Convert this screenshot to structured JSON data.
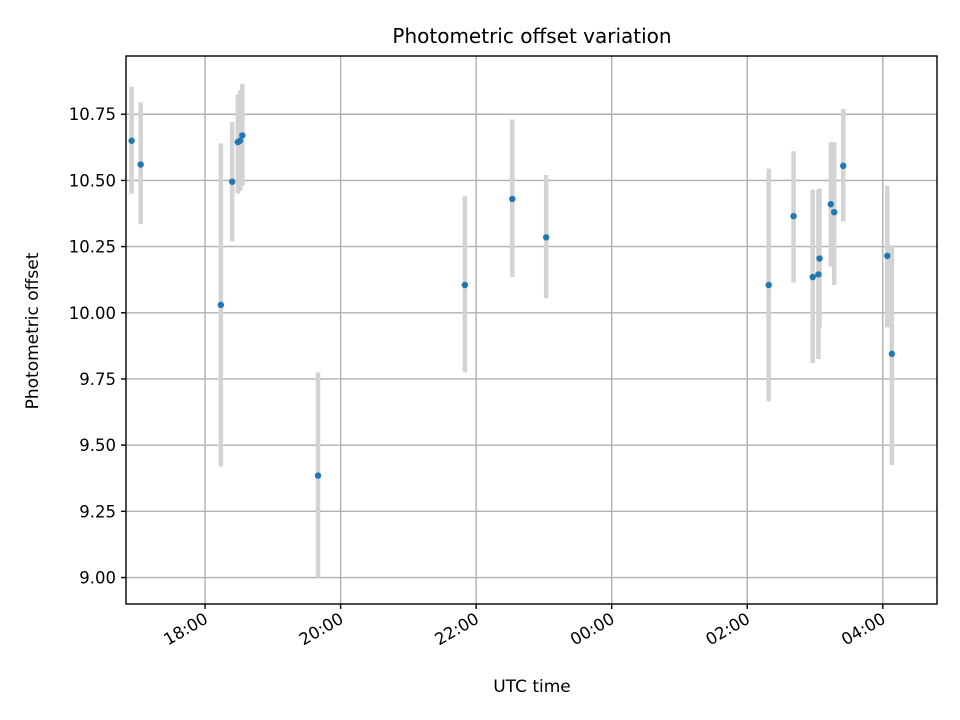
{
  "chart_data": {
    "type": "scatter",
    "title": "Photometric offset variation",
    "xlabel": "UTC time",
    "ylabel": "Photometric offset",
    "grid": true,
    "x_unit": "hours",
    "xlim": [
      "16:50",
      "04:48"
    ],
    "ylim": [
      8.9,
      10.97
    ],
    "x_ticks": [
      {
        "label": "18:00",
        "value": "18:00"
      },
      {
        "label": "20:00",
        "value": "20:00"
      },
      {
        "label": "22:00",
        "value": "22:00"
      },
      {
        "label": "00:00",
        "value": "00:00"
      },
      {
        "label": "02:00",
        "value": "02:00"
      },
      {
        "label": "04:00",
        "value": "04:00"
      }
    ],
    "y_ticks": [
      {
        "label": "9.00",
        "value": 9.0
      },
      {
        "label": "9.25",
        "value": 9.25
      },
      {
        "label": "9.50",
        "value": 9.5
      },
      {
        "label": "9.75",
        "value": 9.75
      },
      {
        "label": "10.00",
        "value": 10.0
      },
      {
        "label": "10.25",
        "value": 10.25
      },
      {
        "label": "10.50",
        "value": 10.5
      },
      {
        "label": "10.75",
        "value": 10.75
      }
    ],
    "colors": {
      "points": "#1f77b4",
      "error_bars": "#d3d3d3",
      "grid": "#b0b0b0"
    },
    "points": [
      {
        "x": "16:55",
        "y": 10.65,
        "ylow": 10.45,
        "yhigh": 10.855
      },
      {
        "x": "17:03",
        "y": 10.56,
        "ylow": 10.335,
        "yhigh": 10.795
      },
      {
        "x": "18:14",
        "y": 10.03,
        "ylow": 9.42,
        "yhigh": 10.64
      },
      {
        "x": "18:24",
        "y": 10.495,
        "ylow": 10.27,
        "yhigh": 10.72
      },
      {
        "x": "18:29",
        "y": 10.645,
        "ylow": 10.45,
        "yhigh": 10.825
      },
      {
        "x": "18:31",
        "y": 10.65,
        "ylow": 10.46,
        "yhigh": 10.84
      },
      {
        "x": "18:33",
        "y": 10.67,
        "ylow": 10.48,
        "yhigh": 10.865
      },
      {
        "x": "19:40",
        "y": 9.385,
        "ylow": 9.0,
        "yhigh": 9.775
      },
      {
        "x": "21:50",
        "y": 10.105,
        "ylow": 9.775,
        "yhigh": 10.44
      },
      {
        "x": "22:32",
        "y": 10.43,
        "ylow": 10.135,
        "yhigh": 10.73
      },
      {
        "x": "23:02",
        "y": 10.285,
        "ylow": 10.055,
        "yhigh": 10.52
      },
      {
        "x": "02:19",
        "y": 10.105,
        "ylow": 9.665,
        "yhigh": 10.545
      },
      {
        "x": "02:41",
        "y": 10.365,
        "ylow": 10.115,
        "yhigh": 10.61
      },
      {
        "x": "02:58",
        "y": 10.135,
        "ylow": 9.81,
        "yhigh": 10.465
      },
      {
        "x": "03:03",
        "y": 10.145,
        "ylow": 9.825,
        "yhigh": 10.465
      },
      {
        "x": "03:04",
        "y": 10.205,
        "ylow": 9.945,
        "yhigh": 10.47
      },
      {
        "x": "03:14",
        "y": 10.41,
        "ylow": 10.175,
        "yhigh": 10.645
      },
      {
        "x": "03:17",
        "y": 10.38,
        "ylow": 10.105,
        "yhigh": 10.645
      },
      {
        "x": "03:25",
        "y": 10.555,
        "ylow": 10.345,
        "yhigh": 10.77
      },
      {
        "x": "04:04",
        "y": 10.215,
        "ylow": 9.945,
        "yhigh": 10.48
      },
      {
        "x": "04:08",
        "y": 9.845,
        "ylow": 9.425,
        "yhigh": 10.255
      }
    ]
  }
}
